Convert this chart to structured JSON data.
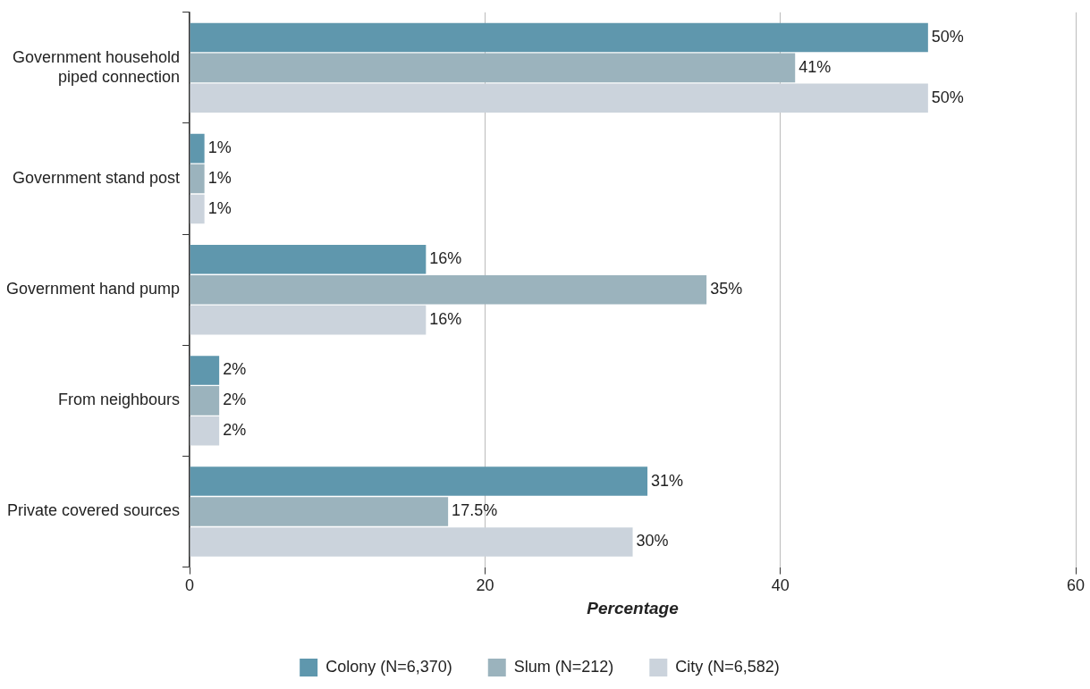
{
  "chart_data": {
    "type": "bar",
    "orientation": "horizontal",
    "xlabel": "Percentage",
    "categories": [
      "Government household piped connection",
      "Government stand post",
      "Government hand pump",
      "From neighbours",
      "Private covered sources"
    ],
    "series": [
      {
        "name": "Colony (N=6,370)",
        "color": "#5f97ad",
        "values": [
          50,
          1,
          16,
          2,
          31
        ],
        "value_labels": [
          "50%",
          "1%",
          "16%",
          "2%",
          "31%"
        ]
      },
      {
        "name": "Slum (N=212)",
        "color": "#9bb3bd",
        "values": [
          41,
          1,
          35,
          2,
          17.5
        ],
        "value_labels": [
          "41%",
          "1%",
          "35%",
          "2%",
          "17.5%"
        ]
      },
      {
        "name": "City (N=6,582)",
        "color": "#cbd3dc",
        "values": [
          50,
          1,
          16,
          2,
          30
        ],
        "value_labels": [
          "50%",
          "1%",
          "16%",
          "2%",
          "30%"
        ]
      }
    ],
    "xlim": [
      0,
      60
    ],
    "xticks": [
      0,
      20,
      40,
      60
    ],
    "grid": "x",
    "legend": "bottom"
  }
}
